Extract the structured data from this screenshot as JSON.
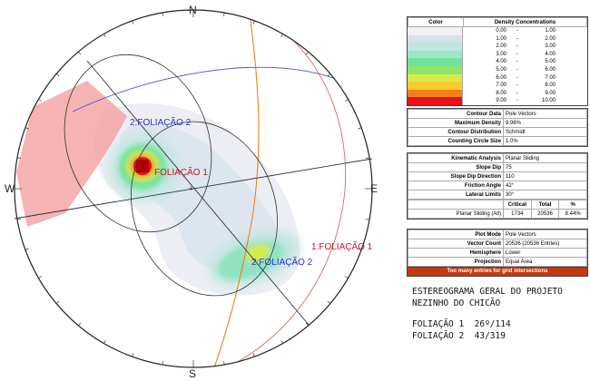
{
  "chart_data": {
    "type": "stereonet",
    "compass": {
      "north": "N",
      "east": "E",
      "south": "S",
      "west": "W"
    },
    "projection": "Equal Area",
    "hemisphere": "Lower",
    "sets": [
      {
        "id": "1",
        "label": "FOLIAÇÃO 1",
        "dip": 26,
        "dip_direction": 114
      },
      {
        "id": "2",
        "label": "FOLIAÇÃO 2",
        "dip": 43,
        "dip_direction": 319
      }
    ],
    "plane_labels": [
      "2:FOLIAÇÃO 2",
      "FOLIAÇÃO 1",
      "2:FOLIAÇÃO 2",
      "1:FOLIAÇÃO 1"
    ],
    "kinematic": {
      "slope_dip": 75,
      "slope_dip_direction": 110,
      "friction_angle": 42,
      "lateral_limits": 30
    }
  },
  "legend": {
    "col_color": "Color",
    "col_density": "Density Concentrations",
    "rows": [
      {
        "color": "#f0f1f5",
        "min": "0.00",
        "max": "1.00"
      },
      {
        "color": "#d6e2ea",
        "min": "1.00",
        "max": "2.00"
      },
      {
        "color": "#bfe6e0",
        "min": "2.00",
        "max": "3.00"
      },
      {
        "color": "#9de8c4",
        "min": "3.00",
        "max": "4.00"
      },
      {
        "color": "#6ee39a",
        "min": "4.00",
        "max": "5.00"
      },
      {
        "color": "#8fe36b",
        "min": "5.00",
        "max": "6.00"
      },
      {
        "color": "#d6eb45",
        "min": "6.00",
        "max": "7.00"
      },
      {
        "color": "#f6cc2e",
        "min": "7.00",
        "max": "8.00"
      },
      {
        "color": "#f07f1c",
        "min": "8.00",
        "max": "9.00"
      },
      {
        "color": "#e8101a",
        "min": "9.00",
        "max": "10.00"
      }
    ],
    "dash": "-"
  },
  "contour": {
    "rows": [
      {
        "label": "Contour Data",
        "value": "Pole Vectors"
      },
      {
        "label": "Maximum Density",
        "value": "9.96%"
      },
      {
        "label": "Contour Distribution",
        "value": "Schmidt"
      },
      {
        "label": "Counting Circle Size",
        "value": "1.0%"
      }
    ]
  },
  "analysis": {
    "rows": [
      {
        "label": "Kinematic Analysis",
        "value": "Planar Sliding"
      },
      {
        "label": "Slope Dip",
        "value": "75"
      },
      {
        "label": "Slope Dip Direction",
        "value": "110"
      },
      {
        "label": "Friction Angle",
        "value": "42°"
      },
      {
        "label": "Lateral Limits",
        "value": "30°"
      }
    ],
    "result_headers": [
      "Critical",
      "Total",
      "%"
    ],
    "result": {
      "name": "Planar Sliding (All)",
      "critical": "1734",
      "total": "20536",
      "percent": "8.44%"
    }
  },
  "plot": {
    "rows": [
      {
        "label": "Plot Mode",
        "value": "Pole Vectors"
      },
      {
        "label": "Vector Count",
        "value": "20536 (20536 Entries)"
      },
      {
        "label": "Hemisphere",
        "value": "Lower"
      },
      {
        "label": "Projection",
        "value": "Equal Area"
      }
    ],
    "banner": "Too many entries for grid intersections"
  },
  "caption": {
    "title_line1": "ESTEREOGRAMA GERAL DO PROJETO",
    "title_line2": "NEZINHO DO CHICÃO",
    "set1": "FOLIAÇÃO 1  26º/114",
    "set2": "FOLIAÇÃO 2  43/319"
  }
}
